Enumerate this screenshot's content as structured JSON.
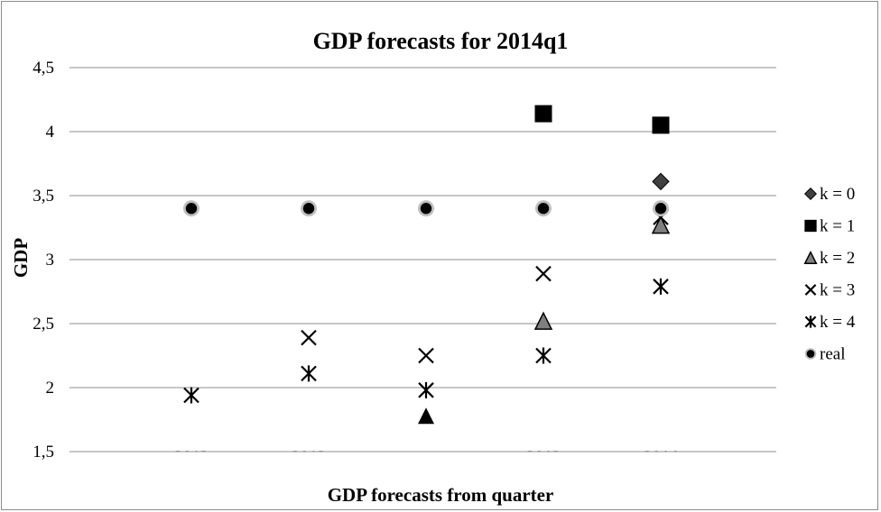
{
  "colors": {
    "black": "#000000",
    "dark_gray": "#404040",
    "mid_gray": "#7f7f7f",
    "light_gray": "#bfbfbf",
    "grid": "#8c8c8c"
  },
  "chart_data": {
    "type": "scatter",
    "title": "GDP forecasts for 2014q1",
    "xlabel": "GDP forecasts from quarter",
    "ylabel": "GDP",
    "ylim": [
      1.5,
      4.5
    ],
    "yticks": [
      "1,5",
      "2",
      "2,5",
      "3",
      "3,5",
      "4",
      "4,5"
    ],
    "categories": [
      "2013",
      "2013",
      "",
      "2013",
      "2014"
    ],
    "grid": true,
    "legend_position": "right",
    "series": [
      {
        "name": "k = 0",
        "marker": "diamond",
        "values": [
          null,
          null,
          null,
          null,
          3.61
        ]
      },
      {
        "name": "k = 1",
        "marker": "square",
        "values": [
          null,
          null,
          null,
          4.14,
          4.05
        ]
      },
      {
        "name": "k = 2",
        "marker": "triangle",
        "values": [
          null,
          null,
          1.78,
          2.52,
          3.27
        ]
      },
      {
        "name": "k = 3",
        "marker": "x",
        "values": [
          null,
          2.39,
          2.25,
          2.89,
          3.33
        ]
      },
      {
        "name": "k = 4",
        "marker": "star",
        "values": [
          1.94,
          2.11,
          1.98,
          2.25,
          2.79
        ]
      },
      {
        "name": "real",
        "marker": "circle",
        "values": [
          3.4,
          3.4,
          3.4,
          3.4,
          3.4
        ]
      }
    ]
  }
}
